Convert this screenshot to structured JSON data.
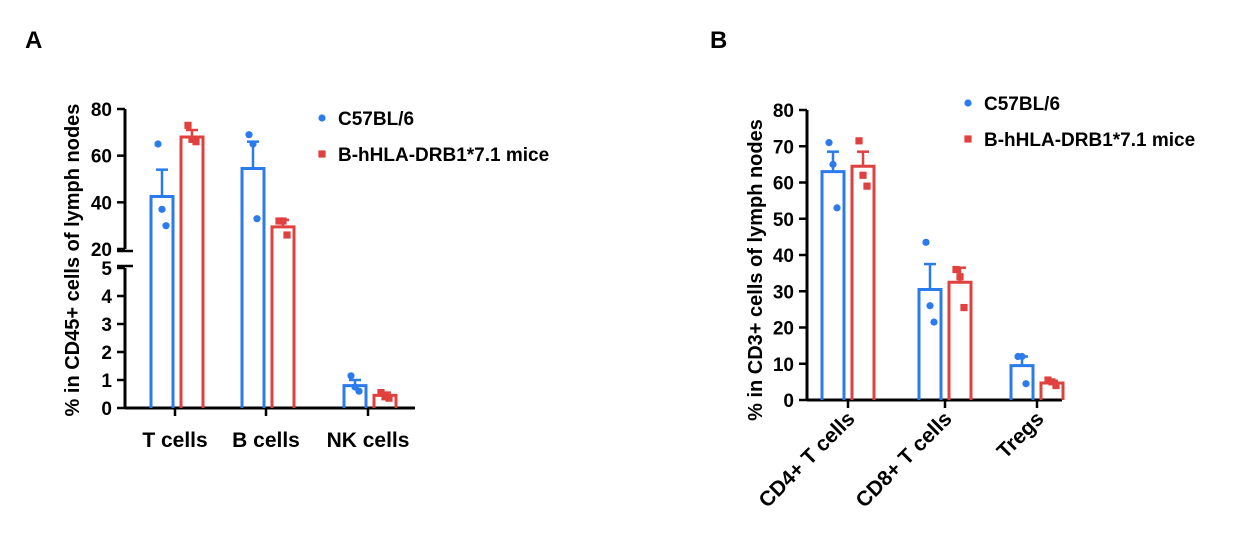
{
  "colors": {
    "c57": "#2b7bec",
    "hla": "#e0413f"
  },
  "chart_data": [
    {
      "type": "bar",
      "panel_label": "A",
      "ylabel": "% in CD45+ cells of lymph nodes",
      "y_axis_break": true,
      "ylim_lower": [
        0,
        5
      ],
      "ylim_upper": [
        20,
        80
      ],
      "yticks_lower": [
        "0",
        "1",
        "2",
        "3",
        "4",
        "5"
      ],
      "yticks_upper": [
        "20",
        "40",
        "60",
        "80"
      ],
      "categories": [
        "T cells",
        "B cells",
        "NK cells"
      ],
      "series": [
        {
          "name": "C57BL/6",
          "marker": "circle",
          "values": [
            42.5,
            54.5,
            0.8
          ],
          "errors": [
            11.5,
            11.5,
            0.2
          ],
          "points": [
            [
              65,
              37,
              30
            ],
            [
              69,
              65,
              33
            ],
            [
              1.15,
              0.75,
              0.6
            ]
          ]
        },
        {
          "name": "B-hHLA-DRB1*7.1 mice",
          "marker": "square",
          "values": [
            68,
            29.5,
            0.45
          ],
          "errors": [
            3,
            3,
            0.1
          ],
          "points": [
            [
              73,
              67,
              66
            ],
            [
              32,
              32,
              26
            ],
            [
              0.55,
              0.4,
              0.35
            ]
          ]
        }
      ],
      "legend": "top-right"
    },
    {
      "type": "bar",
      "panel_label": "B",
      "ylabel": "% in CD3+ cells of lymph nodes",
      "ylim": [
        0,
        80
      ],
      "yticks": [
        "0",
        "10",
        "20",
        "30",
        "40",
        "50",
        "60",
        "70",
        "80"
      ],
      "categories": [
        "CD4+ T cells",
        "CD8+ T cells",
        "Tregs"
      ],
      "series": [
        {
          "name": "C57BL/6",
          "marker": "circle",
          "values": [
            63,
            30.5,
            9.5
          ],
          "errors": [
            5.5,
            7,
            2.5
          ],
          "points": [
            [
              71,
              65,
              53
            ],
            [
              43.5,
              26,
              21.5
            ],
            [
              12,
              12,
              4.5
            ]
          ]
        },
        {
          "name": "B-hHLA-DRB1*7.1 mice",
          "marker": "square",
          "values": [
            64.5,
            32.5,
            4.7
          ],
          "errors": [
            4,
            4,
            0.6
          ],
          "points": [
            [
              71.5,
              62,
              59
            ],
            [
              36,
              34,
              25.5
            ],
            [
              5.5,
              5,
              4
            ]
          ]
        }
      ],
      "legend": "top-right"
    }
  ]
}
